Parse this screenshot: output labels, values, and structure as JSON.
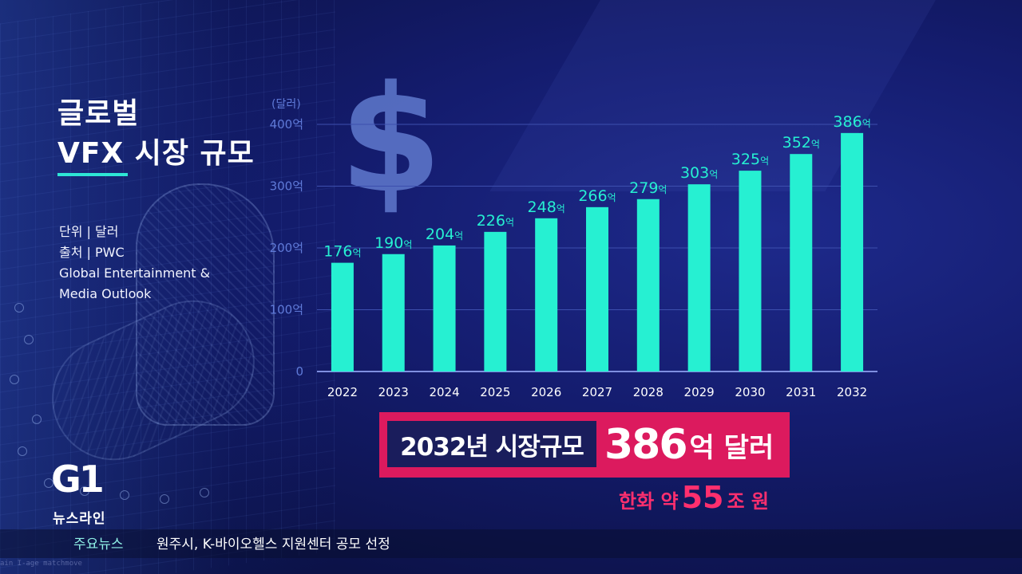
{
  "title_line1": "글로벌",
  "title_line2": "VFX 시장 규모",
  "meta": {
    "unit": "단위 | 달러",
    "source_line1": "출처 | PWC",
    "source_line2": "Global Entertainment &",
    "source_line3": "Media Outlook"
  },
  "dollar_symbol": "$",
  "chart_data": {
    "type": "bar",
    "ylabel": "(달러)",
    "ylim": [
      0,
      400
    ],
    "y_ticks": [
      {
        "value": 0,
        "label": "0"
      },
      {
        "value": 100,
        "label": "100억"
      },
      {
        "value": 200,
        "label": "200억"
      },
      {
        "value": 300,
        "label": "300억"
      },
      {
        "value": 400,
        "label": "400억"
      }
    ],
    "categories": [
      "2022",
      "2023",
      "2024",
      "2025",
      "2026",
      "2027",
      "2028",
      "2029",
      "2030",
      "2031",
      "2032"
    ],
    "values": [
      176,
      190,
      204,
      226,
      248,
      266,
      279,
      303,
      325,
      352,
      386
    ],
    "value_suffix": "억",
    "colors": {
      "bar": "#26f0d2",
      "grid": "#3d4fae",
      "axis": "#7f8fe0",
      "tick_text": "#5f7ad8"
    }
  },
  "banner": {
    "left_text": "2032년 시장규모",
    "value": "386",
    "unit": "억 달러",
    "sub_prefix": "한화 약",
    "sub_value": "55",
    "sub_suffix": "조 원"
  },
  "logo": {
    "mark": "G1",
    "program": "뉴스라인"
  },
  "ticker": {
    "label": "주요뉴스",
    "headline": "원주시, K-바이오헬스 지원센터 공모 선정"
  },
  "watermark": "ain I-age matchmove",
  "colors": {
    "accent": "#2ee6d6",
    "banner": "#dc1a5e",
    "banner_dark": "#1a1d5c",
    "sub": "#ff2f6e"
  }
}
